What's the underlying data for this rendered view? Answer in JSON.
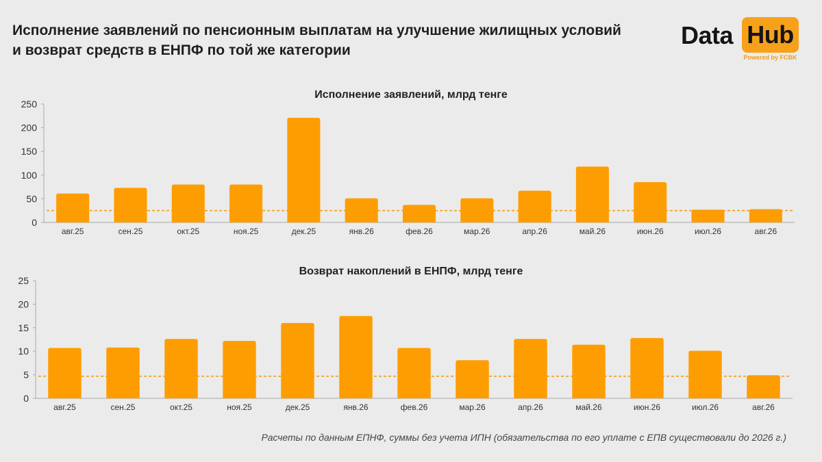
{
  "page": {
    "title": "Исполнение заявлений по пенсионным выплатам на улучшение жилищных условий и возврат средств в ЕНПФ по той же категории",
    "footnote": "Расчеты по данным ЕПНФ, суммы без учета ИПН (обязательства по его уплате с ЕПВ существовали до 2026 г.)"
  },
  "logo": {
    "word1": "Data",
    "word2": "Hub",
    "tagline": "Powered by FCBK",
    "accent_color": "#f7a11a"
  },
  "chart_data": [
    {
      "type": "bar",
      "title": "Исполнение заявлений, млрд тенге",
      "categories": [
        "авг.25",
        "сен.25",
        "окт.25",
        "ноя.25",
        "дек.25",
        "янв.26",
        "фев.26",
        "мар.26",
        "апр.26",
        "май.26",
        "июн.26",
        "июл.26",
        "авг.26"
      ],
      "values": [
        61,
        73,
        80,
        80,
        221,
        51,
        37,
        51,
        67,
        118,
        85,
        27,
        28
      ],
      "reference_line": 25,
      "ylim": [
        0,
        250
      ],
      "yticks": [
        0,
        50,
        100,
        150,
        200,
        250
      ],
      "bar_color": "#fe9d01",
      "line_color": "#f39c12",
      "grid": false,
      "legend": "none"
    },
    {
      "type": "bar",
      "title": "Возврат накоплений в ЕНПФ, млрд тенге",
      "categories": [
        "авг.25",
        "сен.25",
        "окт.25",
        "ноя.25",
        "дек.25",
        "янв.26",
        "фев.26",
        "мар.26",
        "апр.26",
        "май.26",
        "июн.26",
        "июл.26",
        "авг.26"
      ],
      "values": [
        10.7,
        10.8,
        12.6,
        12.2,
        16.0,
        17.5,
        10.7,
        8.1,
        12.6,
        11.4,
        12.8,
        10.1,
        4.9
      ],
      "reference_line": 4.7,
      "ylim": [
        0,
        25
      ],
      "yticks": [
        0,
        5,
        10,
        15,
        20,
        25
      ],
      "bar_color": "#fe9d01",
      "line_color": "#f39c12",
      "grid": false,
      "legend": "none"
    }
  ]
}
